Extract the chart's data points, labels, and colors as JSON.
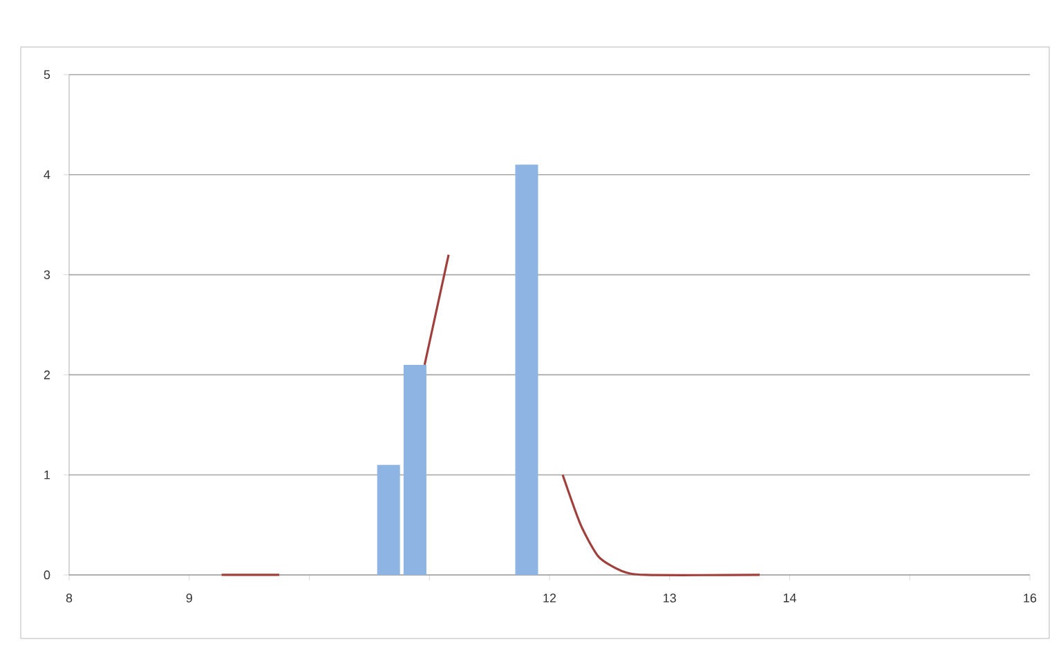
{
  "chart_data": {
    "type": "bar",
    "series": [
      {
        "type": "bar",
        "color": "#8eb4e3",
        "x": [
          10.66,
          10.88,
          11.81
        ],
        "values": [
          1.1,
          2.1,
          4.1
        ]
      },
      {
        "type": "line",
        "color": "#a0403c",
        "x": [
          9.27,
          9.75,
          10.3,
          10.96,
          11.16,
          11.6,
          12.11,
          12.26,
          12.41,
          12.6,
          12.8,
          13.75
        ],
        "values": [
          0,
          0,
          null,
          2.1,
          3.2,
          null,
          1.0,
          0.5,
          0.18,
          0.04,
          0,
          0
        ]
      }
    ],
    "xlim": [
      8,
      16
    ],
    "xticks": [
      8,
      9,
      {
        "value": 10,
        "label": null
      },
      {
        "value": 11,
        "label": null
      },
      12,
      13,
      14,
      {
        "value": 15,
        "label": null
      },
      16
    ],
    "ylim": [
      0,
      5
    ],
    "yticks": [
      0,
      1,
      2,
      3,
      4,
      5
    ],
    "grid": "y"
  }
}
